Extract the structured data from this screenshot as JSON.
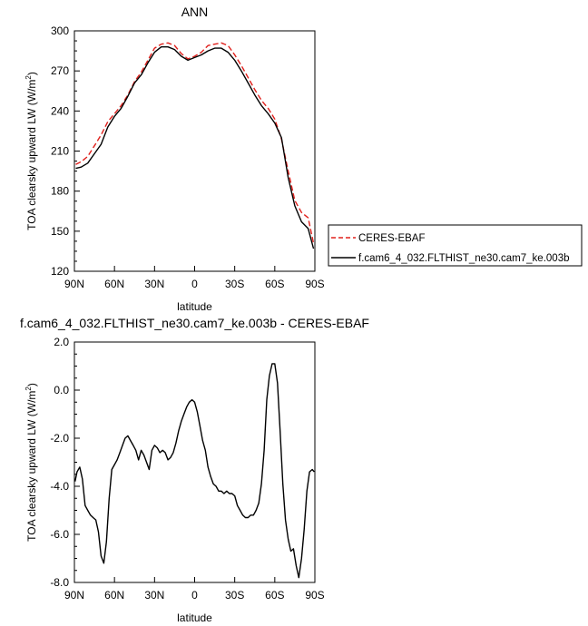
{
  "chart_data": [
    {
      "type": "line",
      "title": "ANN",
      "ylabel": "TOA clearsky upward LW (W/m²)",
      "ylabel_main": "TOA clearsky upward LW (W/m",
      "ylabel_units_sup": "2",
      "ylabel_close": ")",
      "xlabel": "latitude",
      "xlim": [
        90,
        -90
      ],
      "ylim": [
        120,
        300
      ],
      "xticks": [
        90,
        60,
        30,
        0,
        -30,
        -60,
        -90
      ],
      "xtick_labels": [
        "90N",
        "60N",
        "30N",
        "0",
        "30S",
        "60S",
        "90S"
      ],
      "yticks": [
        120,
        150,
        180,
        210,
        240,
        270,
        300
      ],
      "ytick_labels": [
        "120",
        "150",
        "180",
        "210",
        "240",
        "270",
        "300"
      ],
      "legend": "right",
      "series": [
        {
          "name": "CERES-EBAF",
          "color": "#e0201c",
          "dash": "dashed",
          "x": [
            89,
            85,
            80,
            75,
            70,
            65,
            60,
            55,
            50,
            45,
            40,
            35,
            30,
            25,
            20,
            15,
            10,
            5,
            0,
            -5,
            -10,
            -15,
            -20,
            -25,
            -30,
            -35,
            -40,
            -45,
            -50,
            -55,
            -60,
            -65,
            -70,
            -75,
            -80,
            -85,
            -89
          ],
          "y": [
            200,
            202,
            206,
            214,
            222,
            232,
            238,
            244,
            252,
            262,
            269,
            278,
            287,
            290,
            291,
            289,
            283,
            279,
            281,
            284,
            289,
            290,
            291,
            289,
            282,
            274,
            265,
            256,
            248,
            242,
            234,
            219,
            195,
            173,
            164,
            160,
            141
          ]
        },
        {
          "name": "f.cam6_4_032.FLTHIST_ne30.cam7_ke.003b",
          "color": "#000000",
          "dash": "solid",
          "x": [
            89,
            85,
            80,
            75,
            70,
            65,
            60,
            55,
            50,
            45,
            40,
            35,
            30,
            25,
            20,
            15,
            10,
            5,
            0,
            -5,
            -10,
            -15,
            -20,
            -25,
            -30,
            -35,
            -40,
            -45,
            -50,
            -55,
            -60,
            -65,
            -70,
            -75,
            -80,
            -85,
            -89
          ],
          "y": [
            197,
            198,
            201,
            208,
            215,
            228,
            236,
            242,
            251,
            261,
            267,
            276,
            284,
            288,
            288,
            286,
            281,
            278,
            280,
            282,
            285,
            287,
            287,
            284,
            278,
            270,
            261,
            252,
            244,
            238,
            231,
            220,
            190,
            169,
            157,
            152,
            137
          ]
        }
      ]
    },
    {
      "type": "line",
      "title": "f.cam6_4_032.FLTHIST_ne30.cam7_ke.003b - CERES-EBAF",
      "ylabel_main": "TOA clearsky upward LW (W/m",
      "ylabel_units_sup": "2",
      "ylabel_close": ")",
      "xlabel": "latitude",
      "xlim": [
        90,
        -90
      ],
      "ylim": [
        -8,
        2
      ],
      "xticks": [
        90,
        60,
        30,
        0,
        -30,
        -60,
        -90
      ],
      "xtick_labels": [
        "90N",
        "60N",
        "30N",
        "0",
        "30S",
        "60S",
        "90S"
      ],
      "yticks": [
        -8,
        -6,
        -4,
        -2,
        0,
        2
      ],
      "ytick_labels": [
        "-8.0",
        "-6.0",
        "-4.0",
        "-2.0",
        "0.0",
        "2.0"
      ],
      "series": [
        {
          "name": "",
          "color": "#000000",
          "dash": "solid",
          "x": [
            89.5,
            88,
            86,
            84,
            82,
            80,
            78,
            76,
            74,
            72,
            70,
            68,
            66,
            64,
            62,
            60,
            58,
            56,
            54,
            52,
            50,
            48,
            46,
            44,
            42,
            40,
            38,
            36,
            34,
            32,
            30,
            28,
            26,
            24,
            22,
            20,
            18,
            16,
            14,
            12,
            10,
            8,
            6,
            4,
            2,
            0,
            -2,
            -4,
            -6,
            -8,
            -10,
            -12,
            -14,
            -16,
            -18,
            -20,
            -22,
            -24,
            -26,
            -28,
            -30,
            -32,
            -34,
            -36,
            -38,
            -40,
            -42,
            -44,
            -46,
            -48,
            -50,
            -52,
            -54,
            -56,
            -58,
            -60,
            -62,
            -64,
            -66,
            -68,
            -70,
            -72,
            -74,
            -76,
            -78,
            -80,
            -82,
            -84,
            -86,
            -88,
            -89.5
          ],
          "y": [
            -3.8,
            -3.4,
            -3.2,
            -3.7,
            -4.8,
            -5.0,
            -5.2,
            -5.3,
            -5.4,
            -5.9,
            -6.9,
            -7.2,
            -6.3,
            -4.5,
            -3.3,
            -3.1,
            -2.9,
            -2.6,
            -2.3,
            -2.0,
            -1.9,
            -2.1,
            -2.3,
            -2.5,
            -2.9,
            -2.5,
            -2.7,
            -3.0,
            -3.3,
            -2.5,
            -2.3,
            -2.4,
            -2.6,
            -2.5,
            -2.6,
            -2.9,
            -2.8,
            -2.6,
            -2.2,
            -1.7,
            -1.3,
            -1.0,
            -0.7,
            -0.5,
            -0.4,
            -0.5,
            -0.9,
            -1.5,
            -2.1,
            -2.5,
            -3.2,
            -3.6,
            -3.9,
            -4.0,
            -4.2,
            -4.2,
            -4.3,
            -4.2,
            -4.3,
            -4.3,
            -4.4,
            -4.8,
            -5.0,
            -5.2,
            -5.3,
            -5.3,
            -5.2,
            -5.2,
            -5.0,
            -4.7,
            -3.9,
            -2.5,
            -0.4,
            0.6,
            1.1,
            1.1,
            0.3,
            -1.7,
            -3.9,
            -5.4,
            -6.2,
            -6.7,
            -6.6,
            -7.3,
            -7.8,
            -7.0,
            -5.8,
            -4.2,
            -3.4,
            -3.3,
            -3.4
          ]
        }
      ]
    }
  ]
}
